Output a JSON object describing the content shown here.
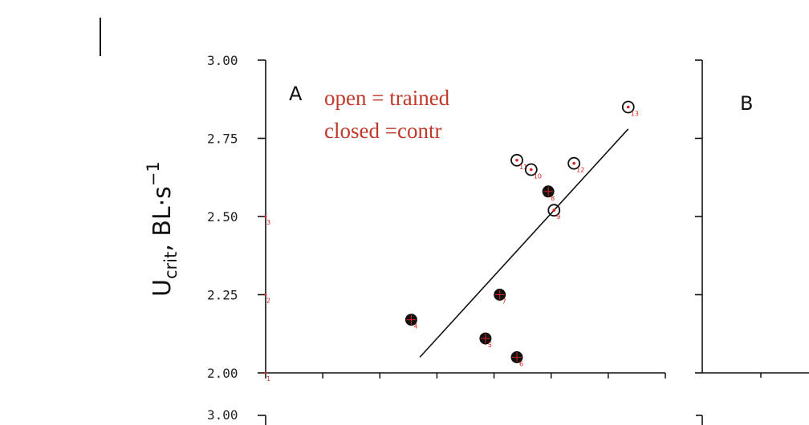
{
  "chart_data": [
    {
      "type": "scatter",
      "panel_letter": "A",
      "legend": [
        "open = trained",
        "closed =contr"
      ],
      "ylabel": "U",
      "ylabel_subscript": "crit",
      "ylabel_units": ", BL·s",
      "ylabel_exponent": "−1",
      "ylim": [
        2.0,
        3.0
      ],
      "yticks": [
        "2.00",
        "2.25",
        "2.50",
        "2.75",
        "3.00"
      ],
      "xlim": [
        0,
        7
      ],
      "series": [
        {
          "marker": "open",
          "points": [
            {
              "x": 4.4,
              "y": 2.68,
              "label": "11"
            },
            {
              "x": 4.65,
              "y": 2.65,
              "label": "10"
            },
            {
              "x": 5.4,
              "y": 2.67,
              "label": "12"
            },
            {
              "x": 5.05,
              "y": 2.52,
              "label": "9"
            },
            {
              "x": 6.35,
              "y": 2.85,
              "label": "13"
            }
          ]
        },
        {
          "marker": "closed",
          "points": [
            {
              "x": 2.55,
              "y": 2.17,
              "label": "4"
            },
            {
              "x": 3.85,
              "y": 2.11,
              "label": "5"
            },
            {
              "x": 4.1,
              "y": 2.25,
              "label": "7"
            },
            {
              "x": 4.4,
              "y": 2.05,
              "label": "6"
            },
            {
              "x": 4.95,
              "y": 2.58,
              "label": "8"
            }
          ]
        }
      ],
      "axis_markers": [
        {
          "y": 2.5,
          "label": "3"
        },
        {
          "y": 2.25,
          "label": "2"
        },
        {
          "y": 2.0,
          "label": "1"
        }
      ],
      "regression_line": {
        "x": [
          2.7,
          6.35
        ],
        "y": [
          2.05,
          2.78
        ]
      }
    },
    {
      "type": "scatter",
      "panel_letter": "B"
    }
  ],
  "lower_panel": {
    "top_tick": "3.00"
  },
  "colors": {
    "axis": "#111111",
    "label_red": "#d6241f",
    "legend_red": "#c0392b"
  }
}
